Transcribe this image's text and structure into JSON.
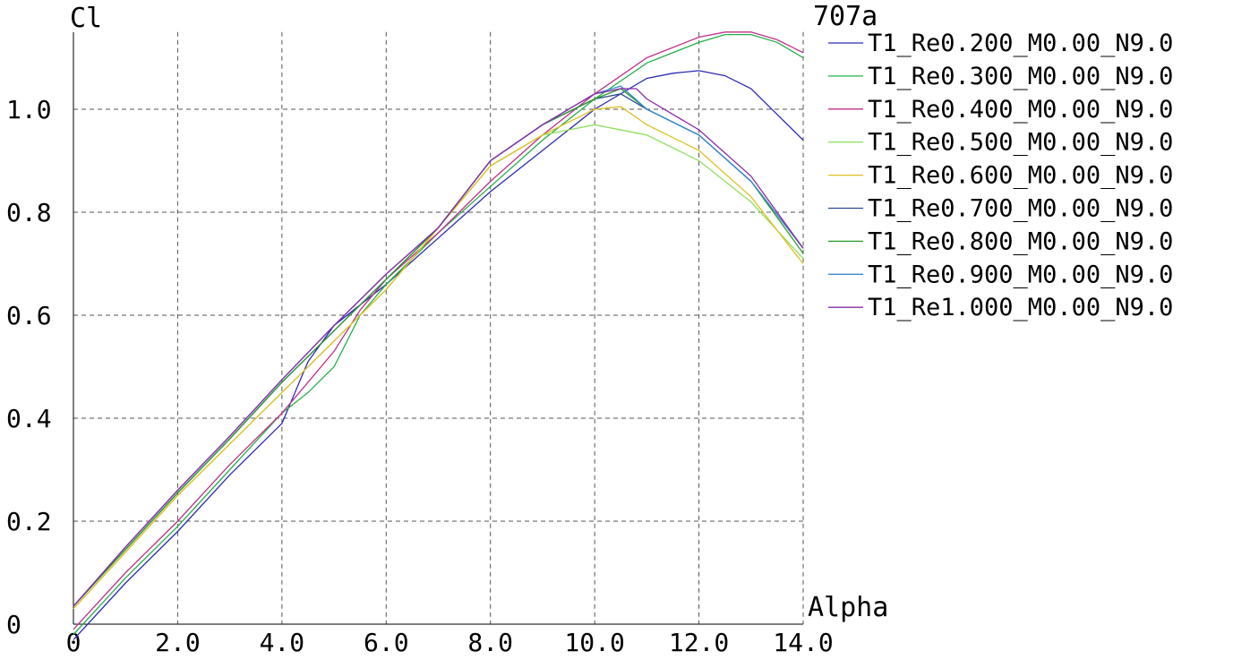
{
  "chart_data": {
    "type": "line",
    "title": "707a",
    "xlabel": "Alpha",
    "ylabel": "Cl",
    "xlim": [
      0,
      14
    ],
    "ylim": [
      0,
      1.15
    ],
    "grid": true,
    "legend_position": "right",
    "x_ticks": [
      {
        "value": 0,
        "label": "0"
      },
      {
        "value": 2,
        "label": "2.0"
      },
      {
        "value": 4,
        "label": "4.0"
      },
      {
        "value": 6,
        "label": "6.0"
      },
      {
        "value": 8,
        "label": "8.0"
      },
      {
        "value": 10,
        "label": "10.0"
      },
      {
        "value": 12,
        "label": "12.0"
      },
      {
        "value": 14,
        "label": "14.0"
      }
    ],
    "y_ticks": [
      {
        "value": 0,
        "label": "0"
      },
      {
        "value": 0.2,
        "label": "0.2"
      },
      {
        "value": 0.4,
        "label": "0.4"
      },
      {
        "value": 0.6,
        "label": "0.6"
      },
      {
        "value": 0.8,
        "label": "0.8"
      },
      {
        "value": 1.0,
        "label": "1.0"
      }
    ],
    "series": [
      {
        "name": "T1_Re0.200_M0.00_N9.0",
        "color": "#2b2bb5",
        "x": [
          0,
          1,
          2,
          3,
          4,
          4.5,
          5,
          6,
          7,
          8,
          9,
          10,
          11,
          11.5,
          12,
          12.5,
          13,
          13.5,
          14
        ],
        "y": [
          -0.03,
          0.08,
          0.18,
          0.29,
          0.39,
          0.51,
          0.58,
          0.66,
          0.75,
          0.84,
          0.92,
          1.0,
          1.06,
          1.07,
          1.075,
          1.065,
          1.04,
          0.99,
          0.94
        ]
      },
      {
        "name": "T1_Re0.300_M0.00_N9.0",
        "color": "#22b04a",
        "x": [
          0,
          1,
          2,
          3,
          4,
          4.5,
          5,
          5.5,
          6,
          7,
          8,
          9,
          10,
          11,
          12,
          12.5,
          13,
          13.5,
          14
        ],
        "y": [
          -0.02,
          0.09,
          0.19,
          0.3,
          0.41,
          0.45,
          0.5,
          0.6,
          0.66,
          0.76,
          0.85,
          0.94,
          1.02,
          1.09,
          1.13,
          1.145,
          1.145,
          1.13,
          1.1
        ]
      },
      {
        "name": "T1_Re0.400_M0.00_N9.0",
        "color": "#c0308a",
        "x": [
          0,
          1,
          2,
          3,
          4,
          4.5,
          5,
          5.5,
          6,
          7,
          8,
          9,
          10,
          11,
          12,
          12.5,
          13,
          13.5,
          14
        ],
        "y": [
          -0.01,
          0.1,
          0.2,
          0.31,
          0.41,
          0.47,
          0.53,
          0.61,
          0.67,
          0.76,
          0.86,
          0.95,
          1.03,
          1.1,
          1.14,
          1.15,
          1.15,
          1.135,
          1.11
        ]
      },
      {
        "name": "T1_Re0.500_M0.00_N9.0",
        "color": "#90e060",
        "x": [
          0,
          1,
          2,
          3,
          4,
          5,
          6,
          7,
          8,
          9,
          10,
          11,
          12,
          13,
          14
        ],
        "y": [
          0.03,
          0.14,
          0.25,
          0.35,
          0.45,
          0.55,
          0.65,
          0.77,
          0.89,
          0.95,
          0.97,
          0.95,
          0.9,
          0.82,
          0.71
        ]
      },
      {
        "name": "T1_Re0.600_M0.00_N9.0",
        "color": "#e0c020",
        "x": [
          0,
          1,
          2,
          3,
          4,
          5,
          6,
          7,
          8,
          9,
          10,
          10.5,
          11,
          12,
          13,
          14
        ],
        "y": [
          0.03,
          0.14,
          0.25,
          0.35,
          0.45,
          0.55,
          0.65,
          0.77,
          0.89,
          0.95,
          1.0,
          1.005,
          0.97,
          0.92,
          0.83,
          0.7
        ]
      },
      {
        "name": "T1_Re0.700_M0.00_N9.0",
        "color": "#2a4a90",
        "x": [
          0,
          1,
          2,
          3,
          4,
          5,
          6,
          7,
          8,
          9,
          10,
          10.5,
          11,
          12,
          13,
          14
        ],
        "y": [
          0.035,
          0.145,
          0.255,
          0.36,
          0.47,
          0.57,
          0.67,
          0.77,
          0.9,
          0.97,
          1.02,
          1.03,
          1.0,
          0.95,
          0.86,
          0.73
        ]
      },
      {
        "name": "T1_Re0.800_M0.00_N9.0",
        "color": "#2a9a2a",
        "x": [
          0,
          1,
          2,
          3,
          4,
          5,
          6,
          7,
          8,
          9,
          10,
          10.5,
          11,
          12,
          13,
          14
        ],
        "y": [
          0.035,
          0.145,
          0.255,
          0.36,
          0.47,
          0.57,
          0.67,
          0.77,
          0.9,
          0.97,
          1.02,
          1.04,
          1.0,
          0.95,
          0.86,
          0.72
        ]
      },
      {
        "name": "T1_Re0.900_M0.00_N9.0",
        "color": "#3a8ad0",
        "x": [
          0,
          1,
          2,
          3,
          4,
          5,
          6,
          7,
          8,
          9,
          10,
          10.5,
          11,
          12,
          13,
          14
        ],
        "y": [
          0.035,
          0.15,
          0.26,
          0.365,
          0.475,
          0.58,
          0.68,
          0.77,
          0.9,
          0.97,
          1.03,
          1.045,
          1.0,
          0.95,
          0.86,
          0.73
        ]
      },
      {
        "name": "T1_Re1.000_M0.00_N9.0",
        "color": "#8a2aa8",
        "x": [
          0,
          1,
          2,
          3,
          4,
          5,
          6,
          7,
          8,
          9,
          10,
          10.5,
          10.8,
          11,
          12,
          13,
          14
        ],
        "y": [
          0.035,
          0.15,
          0.26,
          0.365,
          0.475,
          0.58,
          0.68,
          0.77,
          0.9,
          0.97,
          1.03,
          1.04,
          1.04,
          1.02,
          0.96,
          0.87,
          0.73
        ]
      }
    ]
  }
}
